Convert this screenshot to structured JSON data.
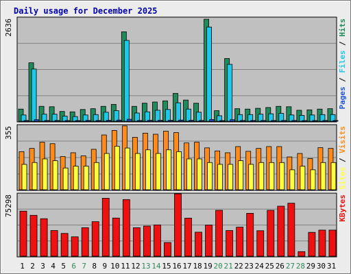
{
  "chart_data": {
    "type": "bar",
    "title": "Daily usage for December 2025",
    "categories": [
      "1",
      "2",
      "3",
      "4",
      "5",
      "6",
      "7",
      "8",
      "9",
      "10",
      "11",
      "12",
      "13",
      "14",
      "15",
      "16",
      "17",
      "18",
      "19",
      "20",
      "21",
      "22",
      "23",
      "24",
      "25",
      "26",
      "27",
      "28",
      "29",
      "30",
      "31"
    ],
    "weekend_days": [
      "6",
      "7",
      "13",
      "14",
      "20",
      "21",
      "27",
      "28"
    ],
    "panels": [
      {
        "id": "top",
        "ymax": 2636,
        "ymax_label": "2636",
        "side_labels": [
          "Pages",
          "Files",
          "Hits"
        ],
        "series": [
          {
            "name": "Hits",
            "color": "#1f8a5c",
            "values": [
              310,
              1490,
              380,
              370,
              250,
              240,
              300,
              320,
              380,
              430,
              2280,
              380,
              460,
              490,
              520,
              710,
              540,
              460,
              2600,
              270,
              1600,
              320,
              310,
              330,
              350,
              380,
              370,
              280,
              290,
              310,
              320
            ]
          },
          {
            "name": "Files",
            "color": "#1fc8e8",
            "values": [
              160,
              1330,
              180,
              180,
              130,
              120,
              160,
              170,
              230,
              270,
              2060,
              210,
              240,
              280,
              300,
              470,
              310,
              230,
              2400,
              140,
              1450,
              170,
              170,
              180,
              190,
              200,
              160,
              150,
              160,
              170,
              170
            ]
          },
          {
            "name": "Pages",
            "color": "#2255dd",
            "values": [
              20,
              40,
              20,
              20,
              15,
              15,
              20,
              20,
              25,
              30,
              50,
              20,
              25,
              25,
              25,
              30,
              25,
              20,
              45,
              15,
              40,
              20,
              20,
              20,
              20,
              20,
              20,
              15,
              15,
              20,
              20
            ]
          }
        ]
      },
      {
        "id": "middle",
        "ymax": 355,
        "ymax_label": "355",
        "side_labels": [
          "Sites",
          "Visits"
        ],
        "series": [
          {
            "name": "Visits",
            "color": "#ff8c1a",
            "values": [
              210,
              228,
              262,
              254,
              183,
              204,
              187,
              223,
              302,
              327,
              352,
              289,
              312,
              306,
              323,
              315,
              258,
              262,
              231,
              214,
              204,
              238,
              212,
              228,
              238,
              238,
              181,
              200,
              172,
              232,
              228
            ]
          },
          {
            "name": "Sites",
            "color": "#ffff40",
            "values": [
              140,
              150,
              170,
              160,
              120,
              130,
              130,
              150,
              200,
              240,
              230,
              200,
              220,
              200,
              220,
              210,
              170,
              170,
              150,
              140,
              140,
              160,
              140,
              150,
              150,
              150,
              110,
              130,
              110,
              150,
              150
            ]
          }
        ]
      },
      {
        "id": "bottom",
        "ymax": 75298,
        "ymax_label": "75298",
        "side_labels": [
          "KBytes"
        ],
        "series": [
          {
            "name": "KBytes",
            "color": "#ee1111",
            "values": [
              54400,
              49400,
              45300,
              31000,
              27500,
              23400,
              34400,
              41700,
              70000,
              46100,
              68400,
              34400,
              36400,
              37800,
              16500,
              75298,
              46000,
              29000,
              37700,
              55400,
              31000,
              35100,
              51800,
              30800,
              55400,
              60400,
              64000,
              5500,
              28800,
              31500,
              31500
            ]
          }
        ]
      }
    ]
  }
}
